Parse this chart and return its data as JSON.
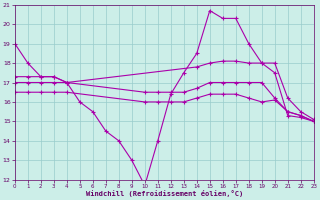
{
  "xlabel": "Windchill (Refroidissement éolien,°C)",
  "xlim": [
    0,
    23
  ],
  "ylim": [
    12,
    21
  ],
  "xticks": [
    0,
    1,
    2,
    3,
    4,
    5,
    6,
    7,
    8,
    9,
    10,
    11,
    12,
    13,
    14,
    15,
    16,
    17,
    18,
    19,
    20,
    21,
    22,
    23
  ],
  "yticks": [
    12,
    13,
    14,
    15,
    16,
    17,
    18,
    19,
    20,
    21
  ],
  "background_color": "#cceee8",
  "grid_color": "#99cccc",
  "line_color": "#aa00aa",
  "line1_x": [
    0,
    1,
    2,
    3,
    4,
    5,
    6,
    7,
    8,
    9,
    10,
    11,
    12,
    13,
    14,
    15,
    16,
    17,
    18,
    19,
    20,
    21,
    22,
    23
  ],
  "line1_y": [
    19,
    18,
    17.3,
    17.3,
    17.0,
    16.0,
    15.5,
    14.5,
    14.0,
    13.0,
    11.7,
    14.0,
    16.4,
    17.5,
    18.5,
    20.7,
    20.3,
    20.3,
    19.0,
    18.0,
    17.5,
    15.3,
    15.2,
    15.0
  ],
  "line2_x": [
    0,
    1,
    2,
    3,
    4,
    14,
    15,
    16,
    17,
    18,
    19,
    20,
    21,
    22,
    23
  ],
  "line2_y": [
    17.3,
    17.3,
    17.3,
    17.3,
    17.0,
    17.8,
    18.0,
    18.1,
    18.1,
    18.0,
    18.0,
    18.0,
    16.2,
    15.5,
    15.1
  ],
  "line3_x": [
    0,
    1,
    2,
    3,
    4,
    10,
    11,
    12,
    13,
    14,
    15,
    16,
    17,
    18,
    19,
    20,
    21,
    22,
    23
  ],
  "line3_y": [
    17.0,
    17.0,
    17.0,
    17.0,
    17.0,
    16.5,
    16.5,
    16.5,
    16.5,
    16.7,
    17.0,
    17.0,
    17.0,
    17.0,
    17.0,
    16.2,
    15.5,
    15.3,
    15.0
  ],
  "line4_x": [
    0,
    1,
    2,
    3,
    4,
    10,
    11,
    12,
    13,
    14,
    15,
    16,
    17,
    18,
    19,
    20,
    21,
    22,
    23
  ],
  "line4_y": [
    16.5,
    16.5,
    16.5,
    16.5,
    16.5,
    16.0,
    16.0,
    16.0,
    16.0,
    16.2,
    16.4,
    16.4,
    16.4,
    16.2,
    16.0,
    16.1,
    15.5,
    15.3,
    15.0
  ]
}
